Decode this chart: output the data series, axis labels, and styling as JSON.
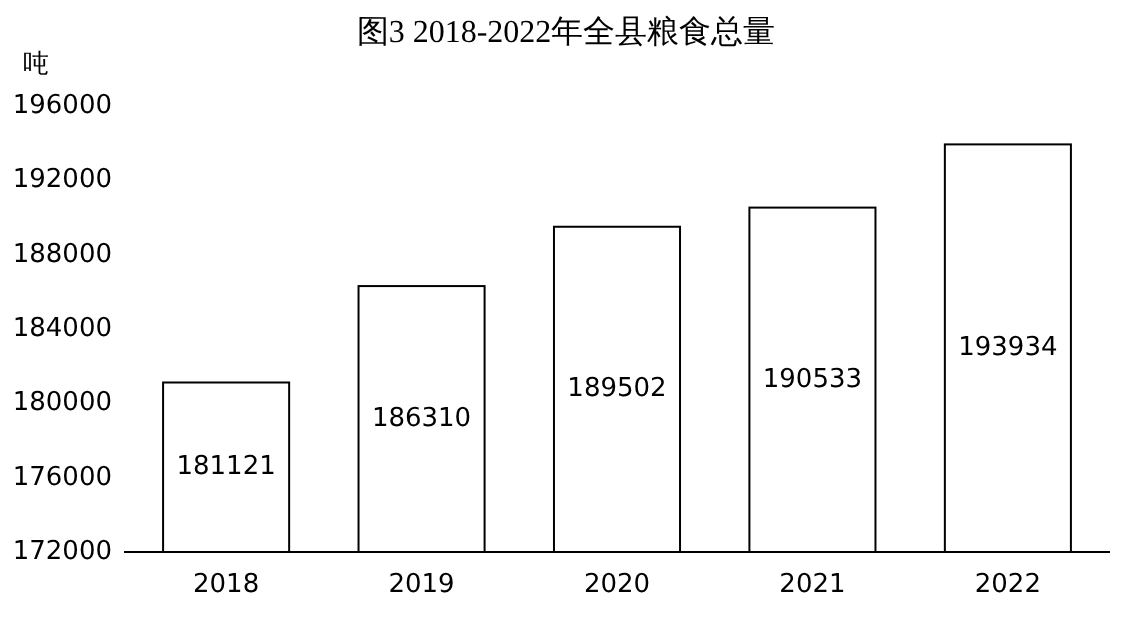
{
  "chart_data": {
    "type": "bar",
    "title": "图3  2018-2022年全县粮食总量",
    "ylabel": "吨",
    "categories": [
      "2018",
      "2019",
      "2020",
      "2021",
      "2022"
    ],
    "values": [
      181121,
      186310,
      189502,
      190533,
      193934
    ],
    "color": "#ffffff",
    "ylim": [
      172000,
      196000
    ],
    "yticks": [
      172000,
      176000,
      180000,
      184000,
      188000,
      192000,
      196000
    ],
    "grid": false,
    "data_labels": true
  }
}
